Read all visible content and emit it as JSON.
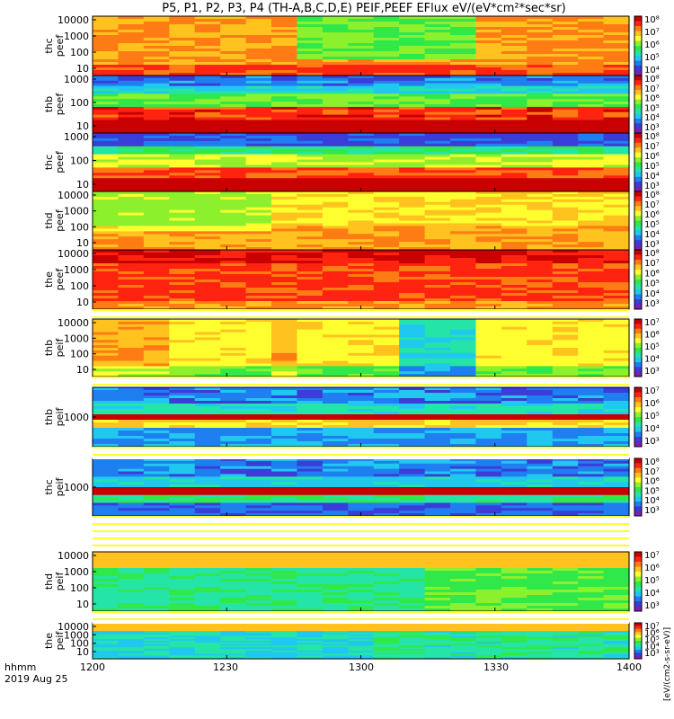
{
  "title": "P5, P1, P2, P3, P4 (TH-A,B,C,D,E) PEIF,PEEF EFlux eV/(eV*cm²*sec*sr)",
  "time_axis": {
    "ticks": [
      "1200",
      "1230",
      "1300",
      "1330",
      "1400"
    ],
    "label_var": "hhmm",
    "label_date": "2019 Aug 25"
  },
  "colorbar_units_text": "[eV/(cm2-s-sr-eV)]",
  "palette": [
    "#7a1fb3",
    "#3b3dd8",
    "#1f7ef0",
    "#20c8f0",
    "#25e4a8",
    "#30e84a",
    "#8cf02c",
    "#ffff30",
    "#ffc21e",
    "#ff7c14",
    "#ff2410",
    "#c80000"
  ],
  "chart_data": {
    "type": "heatmap",
    "time_range": [
      "1200",
      "1400"
    ],
    "panels": [
      {
        "id": "thc-peef",
        "label": [
          "thc",
          "peef"
        ],
        "yticks": [
          "10000",
          "1000",
          "100",
          "10"
        ],
        "cbticks": [
          "10⁸",
          "10⁷",
          "10⁶",
          "10⁵",
          "10⁴"
        ],
        "pattern": "peef_quiet",
        "base": 8,
        "span": 4
      },
      {
        "id": "thb-peef",
        "label": [
          "thb",
          "peef"
        ],
        "yticks": [
          "1000",
          "100",
          "10"
        ],
        "cbticks": [
          "10⁸",
          "10⁷",
          "10⁶",
          "10⁵",
          "10⁴",
          "10³"
        ],
        "pattern": "peef_cold",
        "base": 5,
        "span": 7
      },
      {
        "id": "thc-peef-2",
        "label": [
          "thc",
          "peef"
        ],
        "yticks": [
          "1000",
          "100",
          "10"
        ],
        "cbticks": [
          "10⁸",
          "10⁷",
          "10⁶",
          "10⁵",
          "10⁴",
          "10³"
        ],
        "pattern": "peef_cold2",
        "base": 5,
        "span": 7
      },
      {
        "id": "thd-peef",
        "label": [
          "thd",
          "peef"
        ],
        "yticks": [
          "10000",
          "1000",
          "100",
          "10"
        ],
        "cbticks": [
          "10⁸",
          "10⁷",
          "10⁶",
          "10⁵",
          "10⁴",
          "10³"
        ],
        "pattern": "peef_warm",
        "base": 7,
        "span": 3
      },
      {
        "id": "the-peef",
        "label": [
          "the",
          "peef"
        ],
        "yticks": [
          "10000",
          "1000",
          "100",
          "10"
        ],
        "cbticks": [
          "10⁸",
          "10⁷",
          "10⁶",
          "10⁵",
          "10⁴",
          "10³"
        ],
        "pattern": "peef_hot",
        "base": 9,
        "span": 3
      },
      {
        "id": "thb-peif-1",
        "label": [
          "thb",
          "peif"
        ],
        "yticks": [
          "10000",
          "1000",
          "100",
          "10"
        ],
        "cbticks": [
          "10⁷",
          "10⁶",
          "10⁵",
          "10⁴",
          "10³"
        ],
        "pattern": "peif_mixed",
        "base": 6,
        "span": 4
      },
      {
        "id": "thb-peif",
        "label": [
          "thb",
          "peif"
        ],
        "yticks": [
          "1000"
        ],
        "cbticks": [
          "10⁷",
          "10⁶",
          "10⁵",
          "10⁴",
          "10³"
        ],
        "pattern": "peif_banded",
        "base": 3,
        "span": 7
      },
      {
        "id": "thc-peif",
        "label": [
          "thc",
          "peif"
        ],
        "yticks": [
          "1000"
        ],
        "cbticks": [
          "10⁸",
          "10⁷",
          "10⁶",
          "10⁵",
          "10⁴",
          "10³"
        ],
        "pattern": "peif_banded2",
        "base": 2,
        "span": 8
      },
      {
        "id": "thd-peif",
        "label": [
          "thd",
          "peif"
        ],
        "yticks": [
          "10000",
          "1000",
          "100",
          "10"
        ],
        "cbticks": [
          "10⁷",
          "10⁶",
          "10⁵",
          "10⁴",
          "10³"
        ],
        "pattern": "peif_cool",
        "base": 4,
        "span": 5
      },
      {
        "id": "the-peif",
        "label": [
          "the",
          "peif"
        ],
        "yticks": [
          "10000",
          "1000",
          "100",
          "10"
        ],
        "cbticks": [
          "10⁷",
          "10⁶",
          "10⁵",
          "10⁴",
          "10³"
        ],
        "pattern": "peif_cool2",
        "base": 3,
        "span": 6
      }
    ]
  }
}
